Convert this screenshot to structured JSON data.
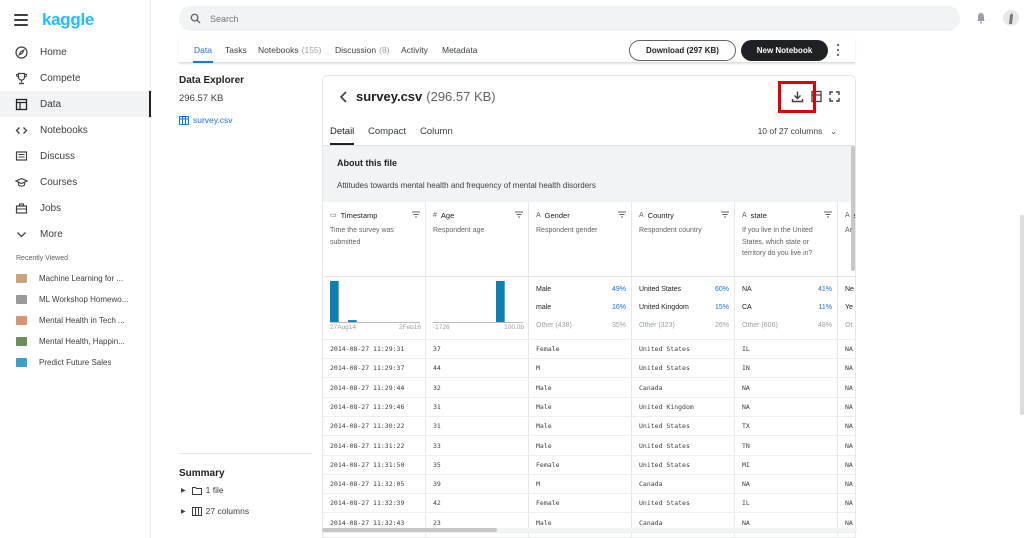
{
  "sidebar": {
    "logo": "kaggle",
    "nav": [
      {
        "label": "Home",
        "icon": "compass-icon"
      },
      {
        "label": "Compete",
        "icon": "trophy-icon"
      },
      {
        "label": "Data",
        "icon": "table-icon",
        "active": true
      },
      {
        "label": "Notebooks",
        "icon": "code-icon"
      },
      {
        "label": "Discuss",
        "icon": "comments-icon"
      },
      {
        "label": "Courses",
        "icon": "graduation-cap-icon"
      },
      {
        "label": "Jobs",
        "icon": "briefcase-icon"
      },
      {
        "label": "More",
        "icon": "chevron-down-icon"
      }
    ],
    "recently_viewed_title": "Recently Viewed",
    "recently_viewed": [
      {
        "label": "Machine Learning for ...",
        "color": "#c9a47a"
      },
      {
        "label": "ML Workshop Homewo...",
        "color": "#9a9a9a"
      },
      {
        "label": "Mental Health in Tech ...",
        "color": "#d9936e"
      },
      {
        "label": "Mental Health, Happin...",
        "color": "#6a8f5a"
      },
      {
        "label": "Predict Future Sales",
        "color": "#3aa0c8"
      }
    ]
  },
  "search": {
    "placeholder": "Search"
  },
  "tabs": [
    {
      "label": "Data",
      "count": ""
    },
    {
      "label": "Tasks",
      "count": ""
    },
    {
      "label": "Notebooks",
      "count": "(155)"
    },
    {
      "label": "Discussion",
      "count": "(8)"
    },
    {
      "label": "Activity",
      "count": ""
    },
    {
      "label": "Metadata",
      "count": ""
    }
  ],
  "buttons": {
    "download": "Download (297 KB)",
    "new_notebook": "New Notebook"
  },
  "data_explorer": {
    "title": "Data Explorer",
    "size": "296.57 KB",
    "file": "survey.csv"
  },
  "summary": {
    "title": "Summary",
    "files": "1 file",
    "columns": "27 columns"
  },
  "file_view": {
    "name": "survey.csv",
    "size": "(296.57 KB)",
    "view_tabs": [
      "Detail",
      "Compact",
      "Column"
    ],
    "column_count": "10 of 27 columns",
    "about_title": "About this file",
    "about_desc": "Attitudes towards mental health and frequency of mental health disorders"
  },
  "columns": [
    {
      "type_icon": "calendar-icon",
      "type_glyph": "▭",
      "name": "Timestamp",
      "desc": "Time the survey was submitted",
      "hist_min": "27Aug14",
      "hist_max": "2Feb16",
      "hist_values": [
        22,
        0,
        1,
        0,
        0,
        0,
        0,
        0,
        0,
        0
      ],
      "color": "#0d7fb0"
    },
    {
      "type_icon": "hash-icon",
      "type_glyph": "#",
      "name": "Age",
      "desc": "Respondent age",
      "hist_min": "-1726",
      "hist_max": "100.0b",
      "hist_values": [
        0,
        0,
        0,
        0,
        0,
        0,
        0,
        1,
        0,
        0
      ],
      "color": "#0d7fb0"
    },
    {
      "type_icon": "string-icon",
      "type_glyph": "A",
      "name": "Gender",
      "desc": "Respondent gender",
      "cats": [
        {
          "name": "Male",
          "pct": "49%"
        },
        {
          "name": "male",
          "pct": "16%"
        },
        {
          "name": "Other (438)",
          "pct": "35%"
        }
      ]
    },
    {
      "type_icon": "string-icon",
      "type_glyph": "A",
      "name": "Country",
      "desc": "Respondent country",
      "cats": [
        {
          "name": "United States",
          "pct": "60%"
        },
        {
          "name": "United Kingdom",
          "pct": "15%"
        },
        {
          "name": "Other (323)",
          "pct": "26%"
        }
      ]
    },
    {
      "type_icon": "string-icon",
      "type_glyph": "A",
      "name": "state",
      "desc": "If you live in the United States, which state or territory do you live in?",
      "cats": [
        {
          "name": "NA",
          "pct": "41%"
        },
        {
          "name": "CA",
          "pct": "11%"
        },
        {
          "name": "Other (606)",
          "pct": "48%"
        }
      ]
    },
    {
      "type_icon": "string-icon",
      "type_glyph": "A",
      "name": "s",
      "desc": "Ar",
      "cats": [
        {
          "name": "Ne",
          "pct": ""
        },
        {
          "name": "Ye",
          "pct": ""
        },
        {
          "name": "Ot",
          "pct": ""
        }
      ]
    }
  ],
  "rows": [
    [
      "2014-08-27 11:29:31",
      "37",
      "Female",
      "United States",
      "IL",
      "NA"
    ],
    [
      "2014-08-27 11:29:37",
      "44",
      "M",
      "United States",
      "IN",
      "NA"
    ],
    [
      "2014-08-27 11:29:44",
      "32",
      "Male",
      "Canada",
      "NA",
      "NA"
    ],
    [
      "2014-08-27 11:29:46",
      "31",
      "Male",
      "United Kingdom",
      "NA",
      "NA"
    ],
    [
      "2014-08-27 11:30:22",
      "31",
      "Male",
      "United States",
      "TX",
      "NA"
    ],
    [
      "2014-08-27 11:31:22",
      "33",
      "Male",
      "United States",
      "TN",
      "NA"
    ],
    [
      "2014-08-27 11:31:50",
      "35",
      "Female",
      "United States",
      "MI",
      "NA"
    ],
    [
      "2014-08-27 11:32:05",
      "39",
      "M",
      "Canada",
      "NA",
      "NA"
    ],
    [
      "2014-08-27 11:32:39",
      "42",
      "Female",
      "United States",
      "IL",
      "NA"
    ],
    [
      "2014-08-27 11:32:43",
      "23",
      "Male",
      "Canada",
      "NA",
      "NA"
    ]
  ],
  "colors": {
    "accent": "#1a73e8",
    "brand": "#20beff",
    "highlight": "#e00000"
  }
}
